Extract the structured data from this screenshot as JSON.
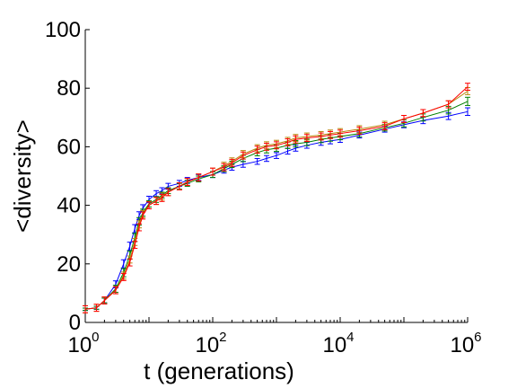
{
  "chart_data": {
    "type": "line",
    "xlabel": "t (generations)",
    "ylabel": "<diversity>",
    "xscale": "log",
    "xlim": [
      1,
      1000000
    ],
    "ylim": [
      0,
      100
    ],
    "yticks": [
      0,
      20,
      40,
      60,
      80,
      100
    ],
    "xticks": [
      {
        "base": "10",
        "exp": "0"
      },
      {
        "base": "10",
        "exp": "2"
      },
      {
        "base": "10",
        "exp": "4"
      },
      {
        "base": "10",
        "exp": "6"
      }
    ],
    "grid": false,
    "legend": "none",
    "error_bars": true,
    "series": [
      {
        "color": "#0000ff",
        "x": [
          1,
          1.5,
          2,
          3,
          4,
          5,
          6,
          7,
          8,
          10,
          13,
          16,
          20,
          30,
          40,
          60,
          100,
          150,
          200,
          300,
          500,
          700,
          1000,
          1500,
          2000,
          3000,
          5000,
          7000,
          10000,
          20000,
          50000,
          100000,
          200000,
          500000,
          1000000
        ],
        "y": [
          4.5,
          5,
          7.5,
          13,
          20,
          26,
          32,
          36.5,
          39,
          42,
          44,
          45,
          46.5,
          47.5,
          48.5,
          49.5,
          50.5,
          52,
          53,
          54,
          55,
          56,
          57,
          58.5,
          59.5,
          60.5,
          61.5,
          62,
          62.5,
          64,
          66,
          67.5,
          69,
          70.5,
          72
        ],
        "err": [
          0.4,
          0.5,
          0.8,
          1.2,
          1.4,
          1.4,
          1.4,
          1.3,
          1.2,
          1.1,
          1.0,
          1.0,
          1.0,
          1.0,
          1.0,
          1.0,
          1.0,
          1.0,
          1.0,
          1.0,
          1.0,
          1.0,
          1.0,
          1.0,
          1.0,
          1.0,
          1.0,
          1.0,
          1.0,
          1.0,
          1.0,
          1.0,
          1.1,
          1.2,
          1.3
        ]
      },
      {
        "color": "#008000",
        "x": [
          1,
          1.5,
          2,
          3,
          4,
          5,
          6,
          7,
          8,
          10,
          13,
          16,
          20,
          30,
          40,
          60,
          100,
          150,
          200,
          300,
          500,
          700,
          1000,
          1500,
          2000,
          3000,
          5000,
          7000,
          10000,
          20000,
          50000,
          100000,
          200000,
          500000,
          1000000
        ],
        "y": [
          4.5,
          5,
          7.5,
          11.5,
          17,
          23,
          29,
          34.5,
          37.5,
          40.5,
          42,
          43.5,
          45,
          46.5,
          47.5,
          49,
          50.5,
          52.5,
          54,
          56,
          58,
          59,
          59.5,
          60.5,
          61,
          61.5,
          62.5,
          63,
          63.5,
          64.5,
          66.5,
          68,
          70,
          72.5,
          75.5
        ],
        "err": [
          0.4,
          0.5,
          0.8,
          1.2,
          1.4,
          1.4,
          1.4,
          1.3,
          1.2,
          1.1,
          1.0,
          1.0,
          1.0,
          1.0,
          1.0,
          1.0,
          1.0,
          1.0,
          1.1,
          1.1,
          1.1,
          1.1,
          1.1,
          1.1,
          1.1,
          1.1,
          1.1,
          1.1,
          1.1,
          1.1,
          1.1,
          1.2,
          1.2,
          1.3,
          1.4
        ]
      },
      {
        "color": "#b8860b",
        "x": [
          1,
          1.5,
          2,
          3,
          4,
          5,
          6,
          7,
          8,
          10,
          13,
          16,
          20,
          30,
          40,
          60,
          100,
          150,
          200,
          300,
          500,
          700,
          1000,
          1500,
          2000,
          3000,
          5000,
          7000,
          10000,
          20000,
          50000,
          100000,
          200000,
          500000,
          1000000
        ],
        "y": [
          4.5,
          5,
          7.5,
          11,
          16,
          21.5,
          27.5,
          33.5,
          37,
          40,
          41.5,
          43,
          44.5,
          46.5,
          48,
          49.5,
          51.5,
          53.5,
          55,
          57.5,
          59.5,
          60.5,
          61,
          62,
          63,
          63.5,
          64,
          64.5,
          65,
          66,
          67.5,
          69.5,
          71.5,
          74.5,
          79
        ]
      },
      {
        "color": "#ff0000",
        "x": [
          1,
          1.5,
          2,
          3,
          4,
          5,
          6,
          7,
          8,
          10,
          13,
          16,
          20,
          30,
          40,
          60,
          100,
          150,
          200,
          300,
          500,
          700,
          1000,
          1500,
          2000,
          3000,
          5000,
          7000,
          10000,
          20000,
          50000,
          100000,
          200000,
          500000,
          1000000
        ],
        "y": [
          4.5,
          5,
          7.5,
          11,
          15.5,
          20.5,
          26.5,
          32.5,
          36.5,
          40,
          41.5,
          42.5,
          44.5,
          46.5,
          48,
          49.5,
          51.5,
          53,
          54.5,
          57,
          59,
          60,
          60.5,
          61.5,
          62.5,
          63,
          63.5,
          64,
          64.5,
          65.5,
          67,
          69.5,
          71.5,
          74.5,
          80.5
        ]
      }
    ]
  }
}
